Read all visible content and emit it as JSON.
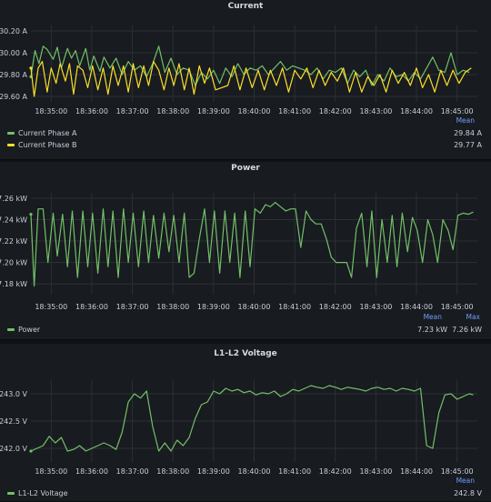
{
  "colors": {
    "green": "#73bf69",
    "yellow": "#fade2a",
    "background": "#181b1f",
    "grid": "#2c3036"
  },
  "x_ticks": [
    "18:35:00",
    "18:36:00",
    "18:37:00",
    "18:38:00",
    "18:39:00",
    "18:40:00",
    "18:41:00",
    "18:42:00",
    "18:43:00",
    "18:44:00",
    "18:45:00"
  ],
  "chart_data": [
    {
      "type": "line",
      "title": "Current",
      "grid": true,
      "legend_placement": "bottom",
      "x_range": [
        "18:34:30",
        "18:45:30"
      ],
      "ylim": [
        29.55,
        30.25
      ],
      "y_ticks": [
        "30.20 A",
        "30.00 A",
        "29.80 A",
        "29.60 A"
      ],
      "y_tick_values": [
        30.2,
        30.0,
        29.8,
        29.6
      ],
      "stat_headers": [
        "Mean"
      ],
      "series": [
        {
          "name": "Current Phase A",
          "color": "#73bf69",
          "stats": [
            "29.84 A"
          ],
          "x_minutes": [
            0.0,
            0.1,
            0.2,
            0.3,
            0.4,
            0.55,
            0.65,
            0.75,
            0.9,
            1.0,
            1.1,
            1.2,
            1.35,
            1.45,
            1.55,
            1.7,
            1.8,
            1.95,
            2.1,
            2.25,
            2.4,
            2.55,
            2.7,
            2.85,
            3.0,
            3.15,
            3.3,
            3.45,
            3.6,
            3.75,
            3.9,
            4.05,
            4.2,
            4.35,
            4.5,
            4.65,
            4.8,
            4.95,
            5.1,
            5.25,
            5.4,
            5.55,
            5.7,
            5.85,
            6.0,
            6.15,
            6.3,
            6.45,
            6.6,
            6.75,
            6.9,
            7.05,
            7.2,
            7.35,
            7.5,
            7.65,
            7.8,
            7.95,
            8.1,
            8.25,
            8.4,
            8.55,
            8.7,
            8.85,
            9.0,
            9.15,
            9.3,
            9.45,
            9.6,
            9.75,
            9.9,
            10.05,
            10.2,
            10.35,
            10.5,
            10.65,
            10.8
          ],
          "values": [
            29.78,
            30.02,
            29.9,
            30.06,
            30.03,
            29.94,
            30.05,
            29.86,
            30.04,
            29.95,
            30.02,
            29.88,
            30.04,
            29.84,
            29.97,
            29.83,
            29.96,
            29.86,
            29.95,
            29.8,
            29.92,
            29.84,
            29.88,
            29.78,
            29.9,
            30.06,
            29.82,
            29.95,
            29.8,
            29.86,
            29.84,
            29.7,
            29.82,
            29.76,
            29.84,
            29.72,
            29.86,
            29.78,
            29.9,
            29.8,
            29.86,
            29.84,
            29.88,
            29.8,
            29.86,
            29.92,
            29.84,
            29.88,
            29.86,
            29.84,
            29.8,
            29.86,
            29.76,
            29.84,
            29.82,
            29.86,
            29.72,
            29.84,
            29.78,
            29.84,
            29.7,
            29.8,
            29.74,
            29.86,
            29.78,
            29.8,
            29.74,
            29.82,
            29.76,
            29.86,
            29.96,
            29.84,
            29.82,
            30.0,
            29.8,
            29.84,
            29.82
          ]
        },
        {
          "name": "Current Phase B",
          "color": "#fade2a",
          "stats": [
            "29.77 A"
          ],
          "x_minutes": [
            0.0,
            0.08,
            0.18,
            0.28,
            0.4,
            0.5,
            0.62,
            0.72,
            0.85,
            0.95,
            1.05,
            1.15,
            1.28,
            1.4,
            1.52,
            1.65,
            1.78,
            1.9,
            2.02,
            2.15,
            2.28,
            2.4,
            2.52,
            2.65,
            2.78,
            2.9,
            3.02,
            3.15,
            3.28,
            3.4,
            3.52,
            3.65,
            3.78,
            3.9,
            4.02,
            4.15,
            4.28,
            4.4,
            4.55,
            4.7,
            4.85,
            5.0,
            5.15,
            5.3,
            5.45,
            5.6,
            5.75,
            5.9,
            6.05,
            6.2,
            6.35,
            6.5,
            6.65,
            6.8,
            6.95,
            7.1,
            7.25,
            7.4,
            7.55,
            7.7,
            7.85,
            8.0,
            8.15,
            8.3,
            8.45,
            8.6,
            8.75,
            8.9,
            9.05,
            9.2,
            9.35,
            9.5,
            9.65,
            9.8,
            9.95,
            10.1,
            10.25,
            10.4,
            10.55,
            10.7,
            10.85
          ],
          "values": [
            29.86,
            29.6,
            29.86,
            29.92,
            29.64,
            29.86,
            29.72,
            29.9,
            29.74,
            29.9,
            29.62,
            29.88,
            29.84,
            29.68,
            29.88,
            29.66,
            29.86,
            29.62,
            29.88,
            29.7,
            29.88,
            29.64,
            29.9,
            29.68,
            29.88,
            29.7,
            29.92,
            29.84,
            29.66,
            29.86,
            29.7,
            29.9,
            29.66,
            29.86,
            29.62,
            29.88,
            29.72,
            29.86,
            29.66,
            29.68,
            29.7,
            29.88,
            29.66,
            29.86,
            29.68,
            29.84,
            29.66,
            29.84,
            29.7,
            29.86,
            29.64,
            29.84,
            29.76,
            29.86,
            29.68,
            29.84,
            29.7,
            29.82,
            29.74,
            29.86,
            29.64,
            29.82,
            29.64,
            29.78,
            29.7,
            29.8,
            29.64,
            29.84,
            29.72,
            29.82,
            29.7,
            29.86,
            29.68,
            29.8,
            29.64,
            29.84,
            29.7,
            29.84,
            29.72,
            29.82,
            29.86
          ]
        }
      ]
    },
    {
      "type": "line",
      "title": "Power",
      "grid": true,
      "legend_placement": "bottom",
      "x_range": [
        "18:34:30",
        "18:45:30"
      ],
      "ylim": [
        7.17,
        7.265
      ],
      "y_ticks": [
        "7.26 kW",
        "7.24 kW",
        "7.22 kW",
        "7.20 kW",
        "7.18 kW"
      ],
      "y_tick_values": [
        7.26,
        7.24,
        7.22,
        7.2,
        7.18
      ],
      "stat_headers": [
        "Mean",
        "Max"
      ],
      "series": [
        {
          "name": "Power",
          "color": "#73bf69",
          "stats": [
            "7.23 kW",
            "7.26 kW"
          ],
          "x_minutes": [
            0.0,
            0.08,
            0.18,
            0.3,
            0.42,
            0.55,
            0.65,
            0.78,
            0.9,
            1.02,
            1.15,
            1.28,
            1.4,
            1.52,
            1.65,
            1.78,
            1.9,
            2.02,
            2.15,
            2.28,
            2.4,
            2.52,
            2.65,
            2.78,
            2.9,
            3.02,
            3.15,
            3.28,
            3.4,
            3.52,
            3.65,
            3.78,
            3.9,
            4.02,
            4.15,
            4.28,
            4.4,
            4.52,
            4.65,
            4.78,
            4.9,
            5.02,
            5.15,
            5.28,
            5.4,
            5.52,
            5.65,
            5.78,
            5.9,
            6.02,
            6.15,
            6.28,
            6.4,
            6.52,
            6.65,
            6.78,
            6.9,
            7.02,
            7.15,
            7.28,
            7.4,
            7.52,
            7.65,
            7.78,
            7.9,
            8.02,
            8.15,
            8.28,
            8.4,
            8.52,
            8.65,
            8.78,
            8.9,
            9.02,
            9.15,
            9.28,
            9.4,
            9.52,
            9.65,
            9.78,
            9.9,
            10.02,
            10.15,
            10.28,
            10.4,
            10.52,
            10.65,
            10.78,
            10.9
          ],
          "values": [
            7.245,
            7.178,
            7.25,
            7.25,
            7.2,
            7.246,
            7.206,
            7.245,
            7.196,
            7.248,
            7.186,
            7.248,
            7.196,
            7.246,
            7.19,
            7.25,
            7.196,
            7.248,
            7.186,
            7.25,
            7.2,
            7.246,
            7.196,
            7.248,
            7.2,
            7.244,
            7.204,
            7.246,
            7.21,
            7.244,
            7.2,
            7.246,
            7.186,
            7.19,
            7.222,
            7.25,
            7.2,
            7.248,
            7.19,
            7.248,
            7.2,
            7.246,
            7.186,
            7.248,
            7.196,
            7.25,
            7.246,
            7.254,
            7.252,
            7.256,
            7.252,
            7.248,
            7.25,
            7.25,
            7.214,
            7.248,
            7.24,
            7.236,
            7.236,
            7.222,
            7.205,
            7.2,
            7.2,
            7.2,
            7.186,
            7.232,
            7.246,
            7.196,
            7.248,
            7.186,
            7.24,
            7.2,
            7.244,
            7.196,
            7.246,
            7.21,
            7.242,
            7.23,
            7.2,
            7.24,
            7.226,
            7.2,
            7.24,
            7.23,
            7.212,
            7.244,
            7.246,
            7.245,
            7.247
          ]
        }
      ]
    },
    {
      "type": "line",
      "title": "L1-L2 Voltage",
      "grid": true,
      "legend_placement": "bottom",
      "x_range": [
        "18:34:30",
        "18:45:30"
      ],
      "ylim": [
        241.75,
        243.25
      ],
      "y_ticks": [
        "243.0 V",
        "242.5 V",
        "242.0 V"
      ],
      "y_tick_values": [
        243.0,
        242.5,
        242.0
      ],
      "stat_headers": [
        "Mean"
      ],
      "series": [
        {
          "name": "L1-L2 Voltage",
          "color": "#73bf69",
          "stats": [
            "242.8 V"
          ],
          "x_minutes": [
            0.0,
            0.15,
            0.3,
            0.45,
            0.6,
            0.75,
            0.9,
            1.05,
            1.2,
            1.35,
            1.5,
            1.65,
            1.8,
            1.95,
            2.1,
            2.25,
            2.4,
            2.55,
            2.7,
            2.85,
            3.0,
            3.15,
            3.3,
            3.45,
            3.6,
            3.75,
            3.9,
            4.05,
            4.2,
            4.35,
            4.5,
            4.65,
            4.8,
            4.95,
            5.1,
            5.25,
            5.4,
            5.55,
            5.7,
            5.85,
            6.0,
            6.15,
            6.3,
            6.45,
            6.6,
            6.75,
            6.9,
            7.05,
            7.2,
            7.35,
            7.5,
            7.65,
            7.8,
            7.95,
            8.1,
            8.25,
            8.4,
            8.55,
            8.7,
            8.85,
            9.0,
            9.15,
            9.3,
            9.45,
            9.6,
            9.75,
            9.9,
            10.05,
            10.2,
            10.35,
            10.5,
            10.65,
            10.8,
            10.9
          ],
          "values": [
            241.95,
            242.0,
            242.05,
            242.22,
            242.1,
            242.2,
            241.95,
            241.98,
            242.05,
            241.95,
            242.0,
            242.05,
            242.1,
            242.05,
            241.98,
            242.3,
            242.85,
            243.0,
            242.92,
            243.05,
            242.4,
            241.95,
            242.1,
            241.95,
            242.15,
            242.05,
            242.2,
            242.55,
            242.8,
            242.85,
            243.05,
            243.0,
            243.1,
            243.05,
            243.08,
            243.02,
            243.05,
            242.98,
            243.02,
            243.0,
            243.05,
            242.95,
            243.0,
            243.08,
            243.05,
            243.1,
            243.15,
            243.12,
            243.1,
            243.15,
            243.12,
            243.08,
            243.12,
            243.1,
            243.08,
            243.05,
            243.1,
            243.12,
            243.08,
            243.1,
            243.05,
            243.1,
            243.08,
            243.05,
            243.1,
            242.05,
            242.0,
            242.65,
            242.98,
            243.0,
            242.9,
            242.95,
            243.0,
            242.98
          ]
        }
      ]
    }
  ]
}
